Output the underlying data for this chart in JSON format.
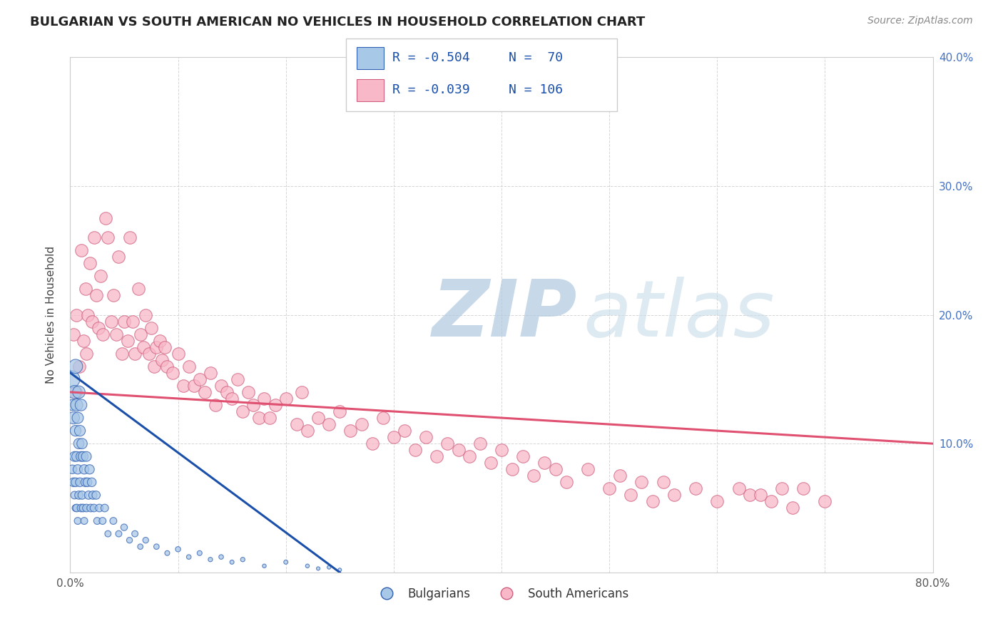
{
  "title": "BULGARIAN VS SOUTH AMERICAN NO VEHICLES IN HOUSEHOLD CORRELATION CHART",
  "source": "Source: ZipAtlas.com",
  "ylabel": "No Vehicles in Household",
  "xlim": [
    0.0,
    0.8
  ],
  "ylim": [
    0.0,
    0.4
  ],
  "xticks": [
    0.0,
    0.1,
    0.2,
    0.3,
    0.4,
    0.5,
    0.6,
    0.7,
    0.8
  ],
  "yticks": [
    0.0,
    0.1,
    0.2,
    0.3,
    0.4
  ],
  "xticklabels": [
    "0.0%",
    "",
    "",
    "",
    "",
    "",
    "",
    "",
    "80.0%"
  ],
  "yticklabels_right": [
    "",
    "10.0%",
    "20.0%",
    "30.0%",
    "40.0%"
  ],
  "blue_scatter_color": "#a8c8e8",
  "blue_edge_color": "#3060b0",
  "pink_scatter_color": "#f8b8c8",
  "pink_edge_color": "#d06080",
  "blue_line_color": "#1a4faa",
  "pink_line_color": "#e05070",
  "watermark_zip_color": "#b8cce4",
  "watermark_atlas_color": "#c8d8e8",
  "title_color": "#222222",
  "tick_color_right": "#4472c4",
  "grid_color": "#cccccc",
  "legend_r1": "R = -0.504",
  "legend_n1": "N =  70",
  "legend_r2": "R = -0.039",
  "legend_n2": "N = 106",
  "bulgarians_x": [
    0.001,
    0.002,
    0.002,
    0.003,
    0.003,
    0.004,
    0.004,
    0.004,
    0.005,
    0.005,
    0.005,
    0.005,
    0.006,
    0.006,
    0.006,
    0.007,
    0.007,
    0.007,
    0.008,
    0.008,
    0.008,
    0.009,
    0.009,
    0.01,
    0.01,
    0.01,
    0.011,
    0.011,
    0.012,
    0.012,
    0.013,
    0.013,
    0.014,
    0.015,
    0.015,
    0.016,
    0.017,
    0.018,
    0.019,
    0.02,
    0.021,
    0.022,
    0.024,
    0.025,
    0.027,
    0.03,
    0.032,
    0.035,
    0.04,
    0.045,
    0.05,
    0.055,
    0.06,
    0.065,
    0.07,
    0.08,
    0.09,
    0.1,
    0.11,
    0.12,
    0.13,
    0.14,
    0.15,
    0.16,
    0.18,
    0.2,
    0.22,
    0.23,
    0.24,
    0.25
  ],
  "bulgarians_y": [
    0.15,
    0.13,
    0.08,
    0.12,
    0.07,
    0.14,
    0.09,
    0.06,
    0.16,
    0.11,
    0.07,
    0.05,
    0.13,
    0.09,
    0.05,
    0.12,
    0.08,
    0.04,
    0.14,
    0.1,
    0.06,
    0.11,
    0.07,
    0.13,
    0.09,
    0.05,
    0.1,
    0.06,
    0.09,
    0.05,
    0.08,
    0.04,
    0.07,
    0.09,
    0.05,
    0.07,
    0.06,
    0.08,
    0.05,
    0.07,
    0.06,
    0.05,
    0.06,
    0.04,
    0.05,
    0.04,
    0.05,
    0.03,
    0.04,
    0.03,
    0.035,
    0.025,
    0.03,
    0.02,
    0.025,
    0.02,
    0.015,
    0.018,
    0.012,
    0.015,
    0.01,
    0.012,
    0.008,
    0.01,
    0.005,
    0.008,
    0.005,
    0.003,
    0.004,
    0.002
  ],
  "bulgarians_sizes": [
    300,
    120,
    80,
    150,
    80,
    180,
    100,
    60,
    200,
    120,
    80,
    50,
    150,
    100,
    60,
    130,
    90,
    50,
    160,
    110,
    70,
    120,
    80,
    140,
    100,
    60,
    110,
    70,
    100,
    60,
    90,
    50,
    80,
    100,
    60,
    80,
    70,
    90,
    60,
    80,
    70,
    60,
    70,
    50,
    60,
    50,
    60,
    40,
    50,
    40,
    45,
    35,
    40,
    30,
    35,
    30,
    25,
    28,
    22,
    25,
    20,
    22,
    18,
    20,
    15,
    18,
    15,
    13,
    14,
    12
  ],
  "south_americans_x": [
    0.003,
    0.005,
    0.006,
    0.008,
    0.01,
    0.012,
    0.014,
    0.015,
    0.016,
    0.018,
    0.02,
    0.022,
    0.024,
    0.026,
    0.028,
    0.03,
    0.033,
    0.035,
    0.038,
    0.04,
    0.043,
    0.045,
    0.048,
    0.05,
    0.053,
    0.055,
    0.058,
    0.06,
    0.063,
    0.065,
    0.068,
    0.07,
    0.073,
    0.075,
    0.078,
    0.08,
    0.083,
    0.085,
    0.088,
    0.09,
    0.095,
    0.1,
    0.105,
    0.11,
    0.115,
    0.12,
    0.125,
    0.13,
    0.135,
    0.14,
    0.145,
    0.15,
    0.155,
    0.16,
    0.165,
    0.17,
    0.175,
    0.18,
    0.185,
    0.19,
    0.2,
    0.21,
    0.215,
    0.22,
    0.23,
    0.24,
    0.25,
    0.26,
    0.27,
    0.28,
    0.29,
    0.3,
    0.31,
    0.32,
    0.33,
    0.34,
    0.35,
    0.36,
    0.37,
    0.38,
    0.39,
    0.4,
    0.41,
    0.42,
    0.43,
    0.44,
    0.45,
    0.46,
    0.48,
    0.5,
    0.51,
    0.52,
    0.53,
    0.54,
    0.55,
    0.56,
    0.58,
    0.6,
    0.62,
    0.63,
    0.64,
    0.65,
    0.66,
    0.67,
    0.68,
    0.7
  ],
  "south_americans_y": [
    0.185,
    0.14,
    0.2,
    0.16,
    0.25,
    0.18,
    0.22,
    0.17,
    0.2,
    0.24,
    0.195,
    0.26,
    0.215,
    0.19,
    0.23,
    0.185,
    0.275,
    0.26,
    0.195,
    0.215,
    0.185,
    0.245,
    0.17,
    0.195,
    0.18,
    0.26,
    0.195,
    0.17,
    0.22,
    0.185,
    0.175,
    0.2,
    0.17,
    0.19,
    0.16,
    0.175,
    0.18,
    0.165,
    0.175,
    0.16,
    0.155,
    0.17,
    0.145,
    0.16,
    0.145,
    0.15,
    0.14,
    0.155,
    0.13,
    0.145,
    0.14,
    0.135,
    0.15,
    0.125,
    0.14,
    0.13,
    0.12,
    0.135,
    0.12,
    0.13,
    0.135,
    0.115,
    0.14,
    0.11,
    0.12,
    0.115,
    0.125,
    0.11,
    0.115,
    0.1,
    0.12,
    0.105,
    0.11,
    0.095,
    0.105,
    0.09,
    0.1,
    0.095,
    0.09,
    0.1,
    0.085,
    0.095,
    0.08,
    0.09,
    0.075,
    0.085,
    0.08,
    0.07,
    0.08,
    0.065,
    0.075,
    0.06,
    0.07,
    0.055,
    0.07,
    0.06,
    0.065,
    0.055,
    0.065,
    0.06,
    0.06,
    0.055,
    0.065,
    0.05,
    0.065,
    0.055
  ],
  "blue_trend_x0": 0.0,
  "blue_trend_y0": 0.155,
  "blue_trend_x1": 0.25,
  "blue_trend_y1": 0.0,
  "pink_trend_x0": 0.0,
  "pink_trend_y0": 0.14,
  "pink_trend_x1": 0.8,
  "pink_trend_y1": 0.1,
  "background_color": "#ffffff"
}
